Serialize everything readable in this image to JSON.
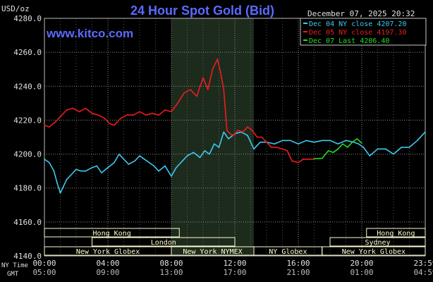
{
  "header": {
    "unit_label": "USD/oz",
    "title": "24 Hour Spot Gold (Bid)",
    "timestamp": "December 07, 2025 20:32",
    "watermark": "www.kitco.com"
  },
  "legend": [
    {
      "label": "Dec 04 NY close 4207.20",
      "color": "#3ec8ee"
    },
    {
      "label": "Dec 05 NY close 4197.30",
      "color": "#ee1c1c"
    },
    {
      "label": "Dec 07 Last 4206.40",
      "color": "#22dd22"
    }
  ],
  "sessions": {
    "rows": [
      [
        {
          "name": "Hong Kong",
          "start_h": 0,
          "end_h": 8.5
        },
        {
          "name": "Hong Kong",
          "start_h": 20.3,
          "end_h": 24
        }
      ],
      [
        {
          "name": "London",
          "start_h": 3,
          "end_h": 12
        },
        {
          "name": "Sydney",
          "start_h": 18,
          "end_h": 24
        }
      ],
      [
        {
          "name": "New York Globex",
          "start_h": 0,
          "end_h": 8
        },
        {
          "name": "New York NYMEX",
          "start_h": 8,
          "end_h": 13.2
        },
        {
          "name": "NY Globex",
          "start_h": 13.2,
          "end_h": 17.5
        },
        {
          "name": "New York Globex",
          "start_h": 17.5,
          "end_h": 24
        }
      ]
    ]
  },
  "time_axis": {
    "row1_label": "NY Time",
    "row2_label": "GMT",
    "ticks_ny": [
      "00:00",
      "04:00",
      "08:00",
      "12:00",
      "16:00",
      "20:00",
      "23:59"
    ],
    "ticks_gmt": [
      "05:00",
      "09:00",
      "13:00",
      "17:00",
      "21:00",
      "01:00",
      "04:59"
    ]
  },
  "colors": {
    "background": "#000000",
    "nymex_shade": "#1d2b1d",
    "grid": "#8a8a8a",
    "session_fill": "#fdfdd0",
    "title": "#5a6bff",
    "watermark": "#5a6bff"
  },
  "chart_data": {
    "type": "line",
    "title": "24 Hour Spot Gold (Bid)",
    "ylabel": "USD/oz",
    "xlabel": "NY Time",
    "x_unit": "hours (NY time)",
    "xlim": [
      0,
      24
    ],
    "ylim": [
      4140,
      4280
    ],
    "yticks": [
      4140.0,
      4160.0,
      4180.0,
      4200.0,
      4220.0,
      4240.0,
      4260.0,
      4280.0
    ],
    "ytick_labels": [
      "4140.0",
      "4160.0",
      "4180.0",
      "4200.0",
      "4220.0",
      "4240.0",
      "4260.0",
      "4280.0"
    ],
    "shaded_region_hours": [
      8,
      13.2
    ],
    "grid": true,
    "legend_position": "top-right",
    "series": [
      {
        "name": "Dec 04 NY close 4207.20",
        "color": "#3ec8ee",
        "x": [
          0,
          0.3,
          0.6,
          0.8,
          1.0,
          1.2,
          1.4,
          1.7,
          2.0,
          2.3,
          2.6,
          3.0,
          3.3,
          3.6,
          4.0,
          4.4,
          4.7,
          5.0,
          5.3,
          5.7,
          6.0,
          6.3,
          6.6,
          6.9,
          7.2,
          7.6,
          8.0,
          8.3,
          8.7,
          9.0,
          9.4,
          9.8,
          10.1,
          10.4,
          10.7,
          11.0,
          11.3,
          11.6,
          12.0,
          12.4,
          12.8,
          13.2,
          13.6,
          14.0,
          14.5,
          15.0,
          15.5,
          16.0,
          16.5,
          17.0,
          17.5,
          18.0,
          18.5,
          19.0,
          19.5,
          19.8,
          20.1,
          20.5,
          21.0,
          21.5,
          22.0,
          22.5,
          23.0,
          23.5,
          23.99
        ],
        "y": [
          4197,
          4195,
          4190,
          4183,
          4177,
          4181,
          4185,
          4188,
          4191,
          4190,
          4190,
          4192,
          4193,
          4189,
          4192,
          4195,
          4200,
          4197,
          4194,
          4196,
          4199,
          4197,
          4195,
          4193,
          4190,
          4193,
          4187,
          4192,
          4196,
          4199,
          4201,
          4198,
          4202,
          4200,
          4206,
          4204,
          4213,
          4209,
          4212,
          4213,
          4211,
          4203,
          4207,
          4207,
          4206,
          4208,
          4208,
          4206,
          4208,
          4207,
          4208,
          4208,
          4206,
          4208,
          4207,
          4206,
          4204,
          4199,
          4203,
          4203,
          4200,
          4204,
          4204,
          4208,
          4213
        ]
      },
      {
        "name": "Dec 05 NY close 4197.30",
        "color": "#ee1c1c",
        "x": [
          0,
          0.3,
          0.7,
          1.0,
          1.4,
          1.8,
          2.2,
          2.6,
          3.0,
          3.4,
          3.8,
          4.1,
          4.4,
          4.8,
          5.2,
          5.6,
          6.0,
          6.4,
          6.8,
          7.2,
          7.6,
          8.0,
          8.4,
          8.8,
          9.2,
          9.6,
          10.0,
          10.3,
          10.6,
          10.9,
          11.1,
          11.3,
          11.5,
          11.7,
          11.9,
          12.2,
          12.5,
          12.8,
          13.1,
          13.4,
          13.7,
          14.0,
          14.3,
          14.6,
          15.0,
          15.3,
          15.6,
          16.0,
          16.3,
          16.6,
          17.0
        ],
        "y": [
          4217,
          4216,
          4219,
          4222,
          4226,
          4227,
          4225,
          4227,
          4224,
          4223,
          4221,
          4218,
          4217,
          4221,
          4223,
          4223,
          4225,
          4223,
          4224,
          4223,
          4226,
          4225,
          4230,
          4236,
          4238,
          4234,
          4245,
          4238,
          4250,
          4256,
          4248,
          4238,
          4214,
          4212,
          4211,
          4214,
          4213,
          4216,
          4214,
          4210,
          4210,
          4207,
          4204,
          4204,
          4203,
          4202,
          4196,
          4195,
          4197,
          4197,
          4197
        ]
      },
      {
        "name": "Dec 07 Last 4206.40",
        "color": "#22dd22",
        "x": [
          17.0,
          17.5,
          17.9,
          18.2,
          18.5,
          18.8,
          19.1,
          19.4,
          19.7,
          20.0
        ],
        "y": [
          4197.3,
          4197.5,
          4202,
          4201,
          4203,
          4206,
          4204,
          4207,
          4209,
          4206.4
        ]
      }
    ]
  }
}
